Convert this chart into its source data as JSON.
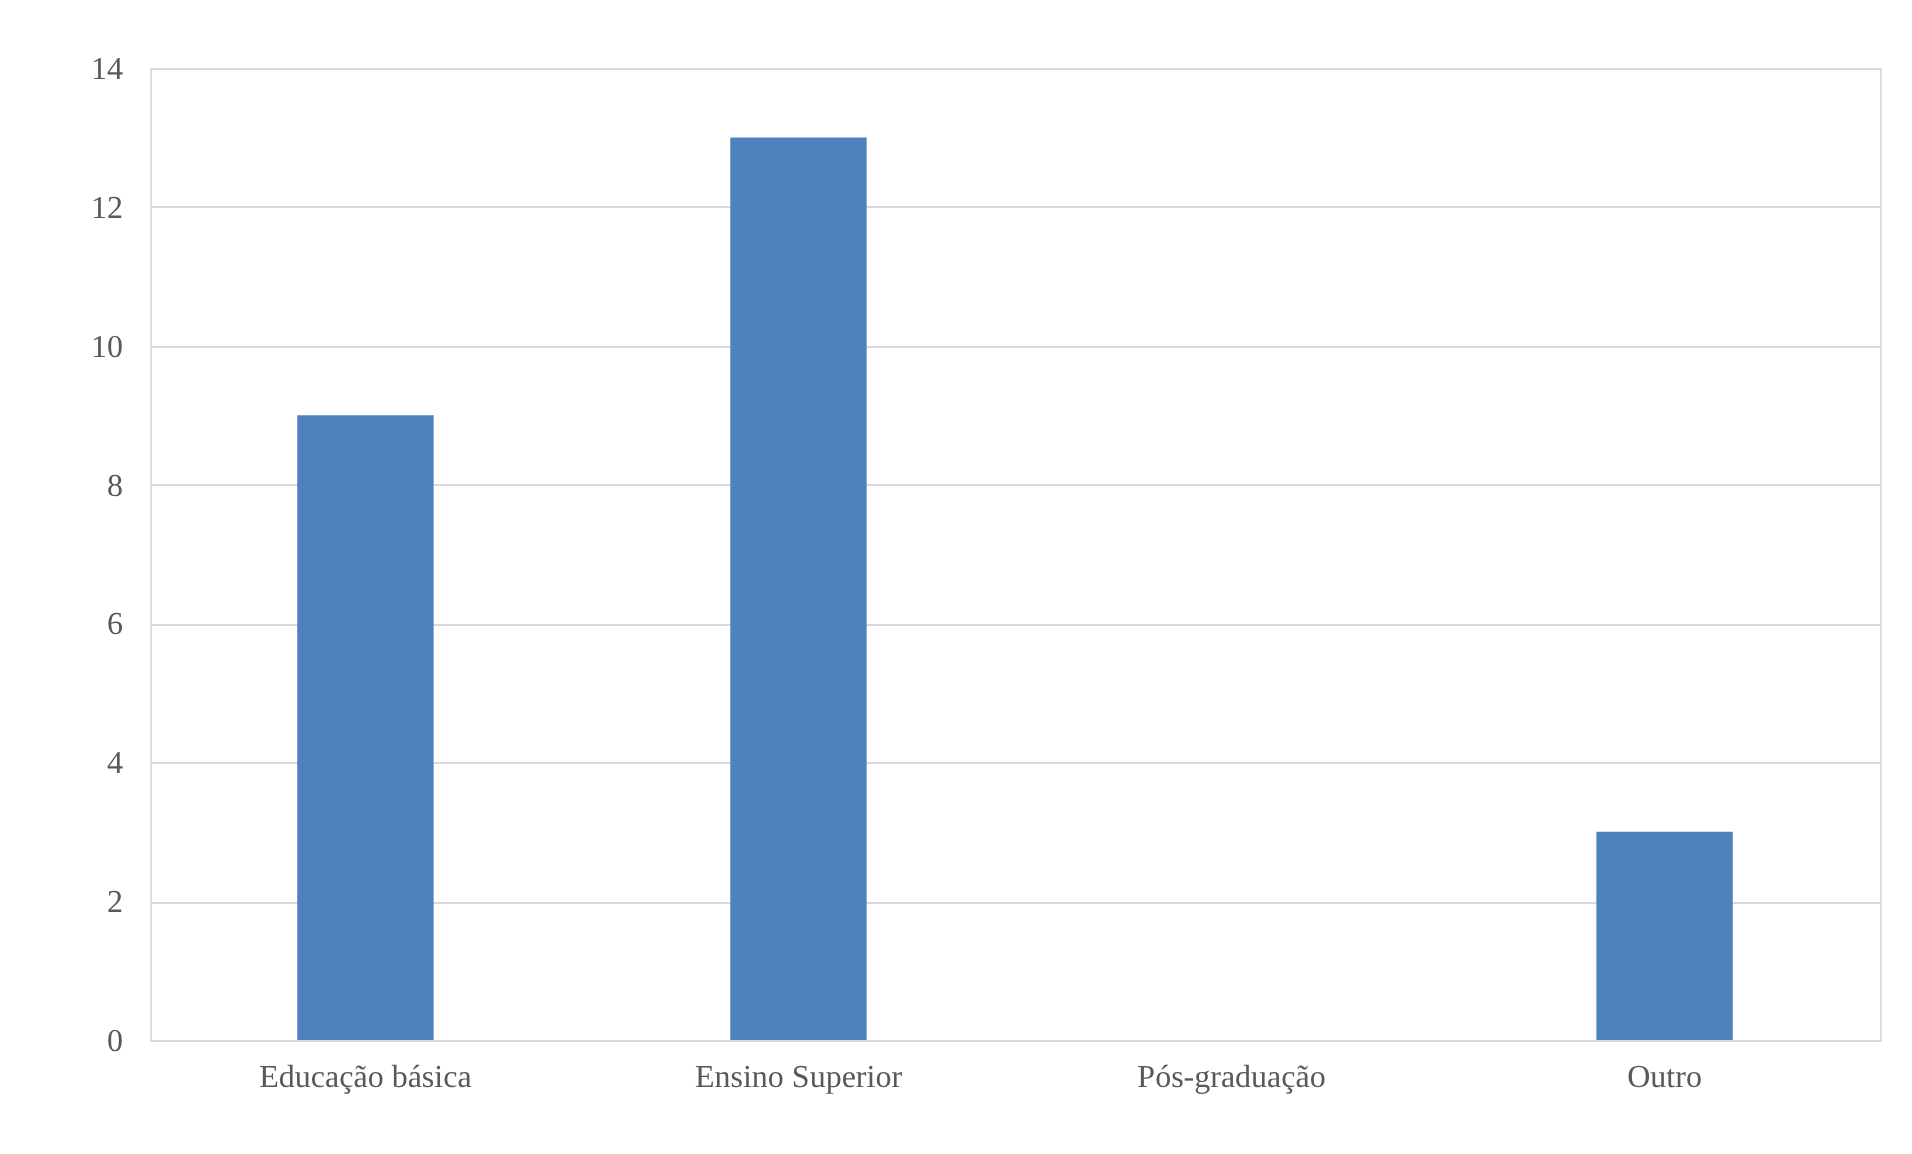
{
  "chart_data": {
    "type": "bar",
    "categories": [
      "Educação básica",
      "Ensino Superior",
      "Pós-graduação",
      "Outro"
    ],
    "values": [
      9,
      13,
      0,
      3
    ],
    "color": "#4f81bd",
    "ylim": [
      0,
      14
    ],
    "yticks": [
      0,
      2,
      4,
      6,
      8,
      10,
      12,
      14
    ],
    "grid": "y"
  }
}
